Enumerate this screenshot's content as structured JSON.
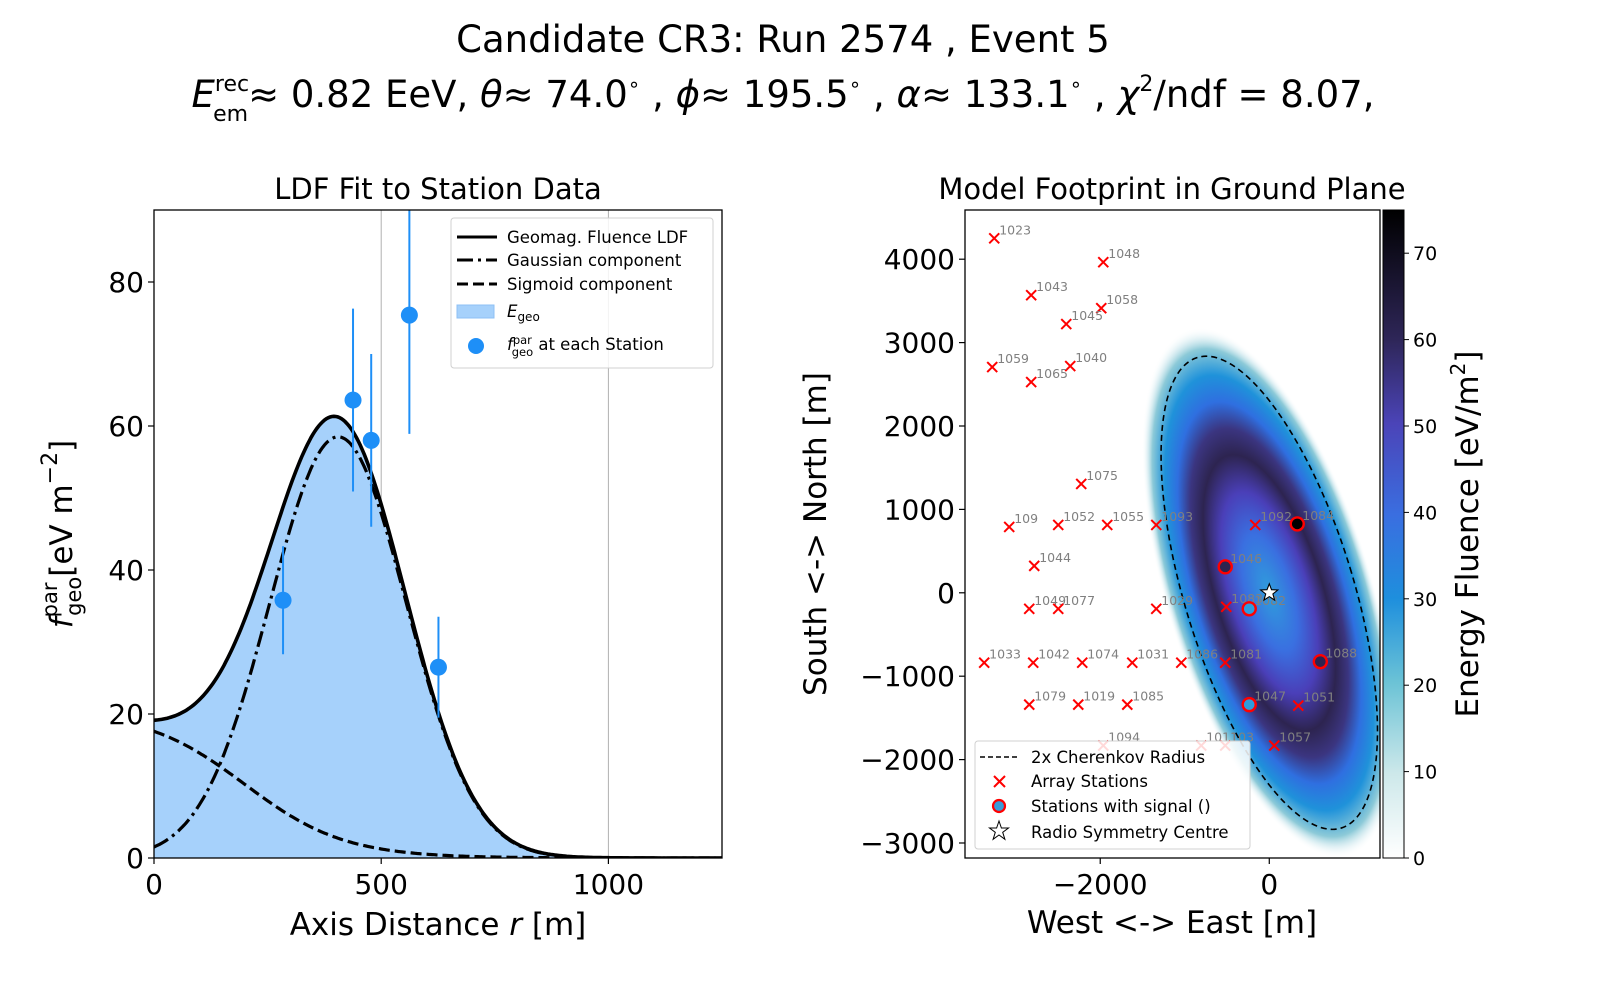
{
  "header": {
    "title_line1": "Candidate CR3: Run 2574 , Event 5",
    "title_line2": {
      "energy_symbol": "E",
      "energy_sup": "rec",
      "energy_sub": "em",
      "energy_text": "≈  0.82 EeV, ",
      "theta_symbol": "θ",
      "theta_text": "≈  74.0",
      "deg": "∘",
      "phi_symbol": "ϕ",
      "phi_text": "≈  195.5",
      "alpha_symbol": "α",
      "alpha_text": "≈  133.1",
      "chi_symbol": "χ",
      "chi_sup": "2",
      "chi_text": "/ndf = 8.07,",
      "sep": " , "
    }
  },
  "chart_data": [
    {
      "type": "line",
      "title": "LDF Fit to Station Data",
      "xlabel": "Axis Distance r [m]",
      "xlabel_parts": {
        "pre": "Axis Distance ",
        "var": "r",
        "post": " [m]"
      },
      "ylabel_parts": {
        "var": "f",
        "sup": "par",
        "sub": "geo",
        "unit": "[eV m",
        "unit_sup": "−2",
        "unit_end": "]"
      },
      "xlim": [
        0,
        1250
      ],
      "ylim": [
        0,
        90
      ],
      "xticks": [
        0,
        500,
        1000
      ],
      "yticks": [
        0,
        20,
        40,
        60,
        80
      ],
      "grid": "x-only",
      "legend_position": "top-right",
      "legend": [
        {
          "label": "Geomag. Fluence LDF",
          "style": "solid"
        },
        {
          "label": "Gaussian component",
          "style": "dashdot"
        },
        {
          "label": "Sigmoid component",
          "style": "dashed"
        },
        {
          "label_var": "E",
          "label_sub": "geo",
          "style": "fill"
        },
        {
          "label_var": "f",
          "label_sup": "par",
          "label_sub": "geo",
          "label_rest": " at each Station",
          "style": "marker"
        }
      ],
      "series": [
        {
          "name": "Gaussian component",
          "model": "gaussian",
          "amplitude": 58.5,
          "mean": 405,
          "sigma": 150
        },
        {
          "name": "Sigmoid component",
          "model": "sigmoid",
          "amplitude": 17.6,
          "r0": 200,
          "width": 110,
          "shape": 0.35
        },
        {
          "name": "Geomag. Fluence LDF",
          "model": "sum"
        }
      ],
      "stations": [
        {
          "r": 284,
          "f": 35.8,
          "err": 7.5
        },
        {
          "r": 438,
          "f": 63.6,
          "err": 12.7
        },
        {
          "r": 478,
          "f": 58.0,
          "err": 12.0
        },
        {
          "r": 562,
          "f": 75.4,
          "err": 16.5
        },
        {
          "r": 626,
          "f": 26.5,
          "err": 7.0
        }
      ],
      "colors": {
        "fill": "#a6d1fb",
        "marker": "#1e8ff7",
        "line": "#000000",
        "grid": "#b0b0b0"
      }
    },
    {
      "type": "heatmap",
      "title": "Model Footprint in Ground Plane",
      "xlabel": "West <-> East [m]",
      "ylabel": "South <-> North [m]",
      "xlim": [
        -3600,
        1310
      ],
      "ylim": [
        -3180,
        4590
      ],
      "xticks": [
        -2000,
        0
      ],
      "yticks": [
        -3000,
        -2000,
        -1000,
        0,
        1000,
        2000,
        3000,
        4000
      ],
      "colorbar": {
        "label": "Energy Fluence [eV/m",
        "label_sup": "2",
        "label_end": "]",
        "range": [
          0,
          75
        ],
        "ticks": [
          0,
          10,
          20,
          30,
          40,
          50,
          60,
          70
        ]
      },
      "footprint": {
        "center": [
          0,
          0
        ],
        "cherenkov_2x_semi_major": 2950,
        "cherenkov_2x_semi_minor": 1000,
        "rotation_deg": 17,
        "peak_ring_fraction": 0.55
      },
      "legend_position": "bottom-left",
      "legend": [
        {
          "label": "2x Cherenkov Radius",
          "style": "dashed"
        },
        {
          "label": "Array Stations",
          "style": "x"
        },
        {
          "label": "Stations with signal ()",
          "style": "circle"
        },
        {
          "label": "Radio Symmetry Centre",
          "style": "star"
        }
      ],
      "symmetry_centre": [
        0,
        0
      ],
      "stations": [
        {
          "id": "1023",
          "x": -3254,
          "y": 4251,
          "signal": false
        },
        {
          "id": "1048",
          "x": -1964,
          "y": 3964,
          "signal": false
        },
        {
          "id": "1043",
          "x": -2817,
          "y": 3569,
          "signal": false
        },
        {
          "id": "1058",
          "x": -1988,
          "y": 3413,
          "signal": false
        },
        {
          "id": "1045",
          "x": -2402,
          "y": 3222,
          "signal": false
        },
        {
          "id": "1059",
          "x": -3278,
          "y": 2707,
          "signal": false
        },
        {
          "id": "1040",
          "x": -2355,
          "y": 2719,
          "signal": false
        },
        {
          "id": "1065",
          "x": -2817,
          "y": 2527,
          "signal": false
        },
        {
          "id": "1075",
          "x": -2225,
          "y": 1305,
          "signal": false
        },
        {
          "id": "109",
          "x": -3077,
          "y": 790,
          "signal": false
        },
        {
          "id": "1052",
          "x": -2497,
          "y": 814,
          "signal": false
        },
        {
          "id": "1055",
          "x": -1917,
          "y": 814,
          "signal": false
        },
        {
          "id": "1093",
          "x": -1337,
          "y": 814,
          "signal": false
        },
        {
          "id": "1092",
          "x": -166,
          "y": 814,
          "signal": false
        },
        {
          "id": "1084",
          "x": 331,
          "y": 826,
          "signal": true,
          "fluence": 75
        },
        {
          "id": "1044",
          "x": -2781,
          "y": 323,
          "signal": false
        },
        {
          "id": "1046",
          "x": -521,
          "y": 311,
          "signal": true,
          "fluence": 62
        },
        {
          "id": "1049",
          "x": -2840,
          "y": -192,
          "signal": false
        },
        {
          "id": "1077",
          "x": -2497,
          "y": -192,
          "signal": false
        },
        {
          "id": "1029",
          "x": -1337,
          "y": -192,
          "signal": false
        },
        {
          "id": "1083",
          "x": -509,
          "y": -168,
          "signal": false
        },
        {
          "id": "1082",
          "x": -237,
          "y": -192,
          "signal": true,
          "fluence": 33
        },
        {
          "id": "1033",
          "x": -3373,
          "y": -838,
          "signal": false
        },
        {
          "id": "1042",
          "x": -2793,
          "y": -838,
          "signal": false
        },
        {
          "id": "1074",
          "x": -2213,
          "y": -838,
          "signal": false
        },
        {
          "id": "1031",
          "x": -1621,
          "y": -838,
          "signal": false
        },
        {
          "id": "1086",
          "x": -1041,
          "y": -838,
          "signal": false
        },
        {
          "id": "1081",
          "x": -521,
          "y": -838,
          "signal": false
        },
        {
          "id": "1088",
          "x": 604,
          "y": -826,
          "signal": true,
          "fluence": 60
        },
        {
          "id": "1079",
          "x": -2840,
          "y": -1341,
          "signal": false
        },
        {
          "id": "1019",
          "x": -2260,
          "y": -1341,
          "signal": false
        },
        {
          "id": "1085",
          "x": -1680,
          "y": -1341,
          "signal": false
        },
        {
          "id": "1047",
          "x": -237,
          "y": -1341,
          "signal": true,
          "fluence": 30
        },
        {
          "id": "1051",
          "x": 343,
          "y": -1353,
          "signal": false
        },
        {
          "id": "1094",
          "x": -1964,
          "y": -1832,
          "signal": false
        },
        {
          "id": "1011",
          "x": -805,
          "y": -1832,
          "signal": false
        },
        {
          "id": "103",
          "x": -521,
          "y": -1832,
          "signal": false
        },
        {
          "id": "1057",
          "x": 59,
          "y": -1832,
          "signal": false
        }
      ],
      "colors": {
        "station": "#ff0000",
        "label": "#808080"
      }
    }
  ]
}
